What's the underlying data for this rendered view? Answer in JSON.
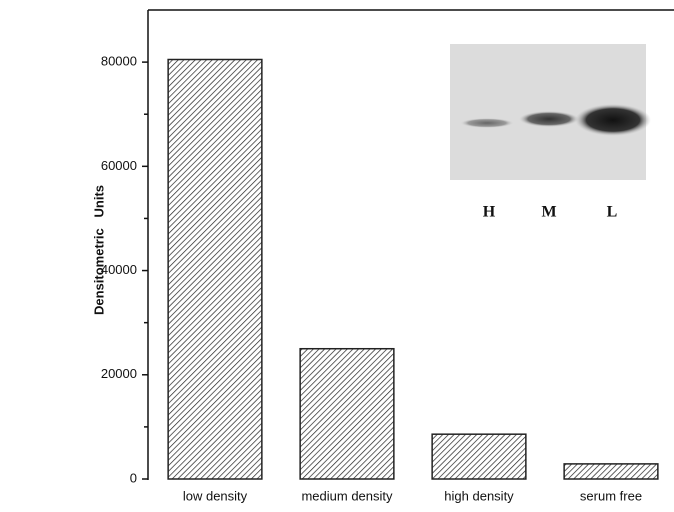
{
  "chart_data": {
    "type": "bar",
    "y_label": "Densitometric   Units",
    "categories": [
      "low density",
      "medium density",
      "high density",
      "serum free"
    ],
    "values": [
      80500,
      25000,
      8600,
      2900
    ],
    "color": "#222222",
    "ylim": [
      0,
      90000
    ],
    "yticks": [
      0,
      20000,
      40000,
      60000,
      80000
    ],
    "yminorticks": [
      10000,
      30000,
      50000,
      70000
    ],
    "grid": false,
    "inset_labels": [
      "H",
      "M",
      "L"
    ]
  }
}
